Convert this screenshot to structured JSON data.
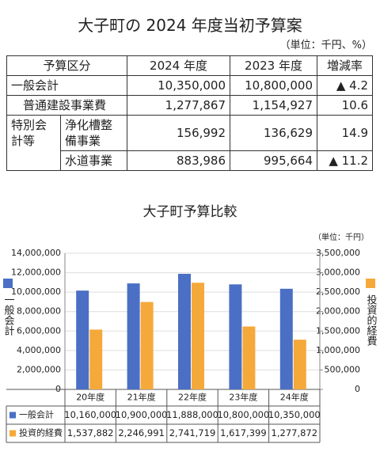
{
  "document": {
    "title": "大子町の 2024 年度当初予算案",
    "unit": "（単位：千円、%）"
  },
  "table": {
    "header": [
      "予算区分",
      "2024 年度",
      "2023 年度",
      "増減率"
    ],
    "rows": [
      [
        "一般会計",
        "10,350,000",
        "10,800,000",
        "▲ 4.2"
      ],
      [
        "普通建設事業費",
        "1,277,867",
        "1,154,927",
        "10.6"
      ],
      [
        "特別会計等",
        "浄化槽整備事業",
        "156,992",
        "136,629",
        "14.9"
      ],
      [
        "水道事業",
        "883,986",
        "995,664",
        "▲ 11.2"
      ]
    ]
  },
  "chart_data": {
    "type": "bar",
    "title": "大子町予算比較",
    "unit": "（単位：千円）",
    "categories": [
      "20年度",
      "21年度",
      "22年度",
      "23年度",
      "24年度"
    ],
    "series": [
      {
        "name": "一般会計",
        "color": "#4a6fc4",
        "values": [
          10160000,
          10900000,
          11888000,
          10800000,
          10350000
        ],
        "value_labels": [
          "10,160,000",
          "10,900,000",
          "11,888,000",
          "10,800,000",
          "10,350,000"
        ]
      },
      {
        "name": "投資的経費",
        "color": "#f5a93a",
        "axis": "y2",
        "values": [
          1537882,
          2246991,
          2741719,
          1617399,
          1277872
        ],
        "value_labels": [
          "1,537,882",
          "2,246,991",
          "2,741,719",
          "1,617,399",
          "1,277,872"
        ]
      }
    ],
    "ylim": [
      0,
      14000000
    ],
    "yticks": [
      0,
      {
        "value": 2000000,
        "label": "2,000,000"
      },
      {
        "value": 4000000,
        "label": "4,000,000"
      },
      {
        "value": 6000000,
        "label": "6,000,000"
      },
      {
        "value": 8000000,
        "label": "8,000,000"
      },
      {
        "value": 10000000,
        "label": "10,000,000"
      },
      {
        "value": 12000000,
        "label": "12,000,000"
      },
      {
        "value": 14000000,
        "label": "14,000,000"
      }
    ],
    "y2lim": [
      0,
      3500000
    ],
    "y2ticks": [
      0,
      {
        "value": 500000,
        "label": "500,000"
      },
      {
        "value": 1000000,
        "label": "1,000,000"
      },
      {
        "value": 1500000,
        "label": "1,500,000"
      },
      {
        "value": 2000000,
        "label": "2,000,000"
      },
      {
        "value": 2500000,
        "label": "2,500,000"
      },
      {
        "value": 3000000,
        "label": "3,000,000"
      },
      {
        "value": 3500000,
        "label": "3,500,000"
      }
    ],
    "grid": true
  }
}
